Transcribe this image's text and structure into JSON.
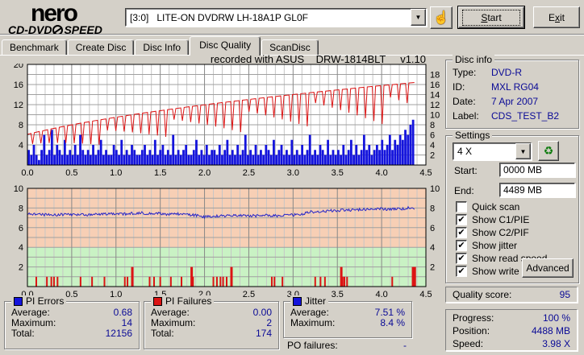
{
  "header": {
    "logo": {
      "line1": "nero",
      "line2a": "CD-DVD",
      "line2b": "SPEED"
    },
    "drive_select": {
      "value": "[3:0]   LITE-ON DVDRW LH-18A1P GL0F"
    },
    "start_button": {
      "u": "S",
      "rest": "tart"
    },
    "exit_button": {
      "pre": "E",
      "u": "x",
      "rest": "it"
    }
  },
  "tabs": [
    {
      "label": "Benchmark",
      "active": false
    },
    {
      "label": "Create Disc",
      "active": false
    },
    {
      "label": "Disc Info",
      "active": false
    },
    {
      "label": "Disc Quality",
      "active": true
    },
    {
      "label": "ScanDisc",
      "active": false
    }
  ],
  "chart_header": "recorded with ASUS    DRW-1814BLT     v1.10",
  "disc_info": {
    "title": "Disc info",
    "rows": [
      {
        "label": "Type:",
        "value": "DVD-R"
      },
      {
        "label": "ID:",
        "value": "MXL RG04"
      },
      {
        "label": "Date:",
        "value": "7 Apr 2007"
      },
      {
        "label": "Label:",
        "value": "CDS_TEST_B2"
      }
    ]
  },
  "settings": {
    "title": "Settings",
    "speed_select": "4 X",
    "start_label": "Start:",
    "start_value": "0000 MB",
    "end_label": "End:",
    "end_value": "4489 MB",
    "checkboxes": [
      {
        "label": "Quick scan",
        "checked": false
      },
      {
        "label": "Show C1/PIE",
        "checked": true
      },
      {
        "label": "Show C2/PIF",
        "checked": true
      },
      {
        "label": "Show jitter",
        "checked": true
      },
      {
        "label": "Show read speed",
        "checked": true
      },
      {
        "label": "Show write speed",
        "checked": true
      }
    ],
    "advanced_button": "Advanced"
  },
  "quality": {
    "label": "Quality score:",
    "value": "95"
  },
  "progress": {
    "rows": [
      {
        "label": "Progress:",
        "value": "100 %"
      },
      {
        "label": "Position:",
        "value": "4488 MB"
      },
      {
        "label": "Speed:",
        "value": "3.98 X"
      }
    ]
  },
  "stats": {
    "pi_errors": {
      "title": "PI Errors",
      "color": "#1414dc",
      "rows": [
        {
          "label": "Average:",
          "value": "0.68"
        },
        {
          "label": "Maximum:",
          "value": "14"
        },
        {
          "label": "Total:",
          "value": "12156"
        }
      ]
    },
    "pi_failures": {
      "title": "PI Failures",
      "color": "#dc1414",
      "rows": [
        {
          "label": "Average:",
          "value": "0.00"
        },
        {
          "label": "Maximum:",
          "value": "2"
        },
        {
          "label": "Total:",
          "value": "174"
        }
      ]
    },
    "jitter": {
      "title": "Jitter",
      "color": "#1414dc",
      "rows": [
        {
          "label": "Average:",
          "value": "7.51 %"
        },
        {
          "label": "Maximum:",
          "value": "8.4 %"
        }
      ]
    }
  },
  "po_failures": {
    "label": "PO failures:",
    "value": "-"
  },
  "chart_data": [
    {
      "name": "pi-errors-write-speed",
      "type": "bar",
      "x_range": [
        0,
        4.5
      ],
      "x_tick_step": 0.5,
      "x_minor_step": 0.1,
      "data_end_x": 4.37,
      "left_axis": {
        "range": [
          0,
          20
        ],
        "tick_labels": [
          4,
          8,
          12,
          16,
          20
        ]
      },
      "right_axis": {
        "range": [
          0,
          20
        ],
        "tick_labels": [
          2,
          4,
          6,
          8,
          10,
          12,
          14,
          16,
          18
        ]
      },
      "series": [
        {
          "name": "PI Errors",
          "type": "bar",
          "color": "#1414dc",
          "values": [
            3,
            2,
            4,
            2,
            1,
            3,
            6,
            2,
            3,
            7,
            2,
            4,
            3,
            2,
            5,
            2,
            3,
            2,
            4,
            2,
            6,
            3,
            2,
            3,
            2,
            4,
            2,
            3,
            5,
            2,
            3,
            2,
            2,
            4,
            3,
            2,
            5,
            2,
            3,
            2,
            4,
            3,
            2,
            2,
            3,
            4,
            2,
            3,
            2,
            5,
            2,
            3,
            4,
            2,
            3,
            2,
            6,
            2,
            3,
            2,
            3,
            4,
            2,
            2,
            3,
            5,
            2,
            3,
            2,
            4,
            2,
            3,
            3,
            2,
            4,
            2,
            3,
            5,
            2,
            3,
            2,
            4,
            2,
            3,
            6,
            2,
            3,
            2,
            4,
            2,
            3,
            2,
            4,
            3,
            2,
            5,
            2,
            3,
            4,
            2,
            3,
            2,
            5,
            2,
            3,
            2,
            4,
            2,
            3,
            6,
            2,
            3,
            2,
            4,
            3,
            2,
            5,
            2,
            3,
            2,
            3,
            2,
            4,
            2,
            3,
            5,
            2,
            4,
            2,
            3,
            6,
            3,
            4,
            2,
            3,
            4,
            3,
            5,
            3,
            4,
            6,
            3,
            5,
            4,
            6,
            5,
            7,
            6,
            8,
            9
          ]
        },
        {
          "name": "Read speed",
          "type": "hline",
          "color": "#bebebe",
          "value": 4
        },
        {
          "name": "Write speed",
          "type": "cav-line",
          "color": "#dc1414",
          "start": 6.1,
          "end": 16.4,
          "dips": {
            "first": 0.07,
            "interval": 0.094,
            "base_depth": 2.2,
            "var_depth": 2.2,
            "x_gain": 0.9
          }
        }
      ]
    },
    {
      "name": "jitter-pi-failures",
      "type": "line",
      "x_range": [
        0,
        4.5
      ],
      "x_tick_step": 0.5,
      "x_minor_step": 0.1,
      "data_end_x": 4.37,
      "y_axis": {
        "range": [
          0,
          10
        ],
        "tick_labels": [
          2,
          4,
          6,
          8,
          10
        ]
      },
      "bands": [
        {
          "from": 4,
          "to": 10,
          "color": "#f7cfb5"
        },
        {
          "from": 0,
          "to": 4,
          "color": "#c9f2c4"
        }
      ],
      "series": [
        {
          "name": "PI Failures",
          "type": "bar-points",
          "color": "#dc1414",
          "points": [
            [
              0.1,
              1
            ],
            [
              0.22,
              1
            ],
            [
              0.27,
              1
            ],
            [
              0.3,
              1
            ],
            [
              0.34,
              1
            ],
            [
              0.6,
              1
            ],
            [
              0.73,
              1
            ],
            [
              0.87,
              1
            ],
            [
              1.1,
              1
            ],
            [
              1.13,
              1
            ],
            [
              1.18,
              2
            ],
            [
              1.38,
              1
            ],
            [
              1.43,
              1
            ],
            [
              1.5,
              1
            ],
            [
              1.62,
              1
            ],
            [
              1.74,
              1
            ],
            [
              1.85,
              2
            ],
            [
              1.87,
              1
            ],
            [
              2.1,
              1
            ],
            [
              2.14,
              1
            ],
            [
              2.18,
              1
            ],
            [
              2.21,
              1
            ],
            [
              2.25,
              1
            ],
            [
              2.3,
              2
            ],
            [
              2.76,
              1
            ],
            [
              2.79,
              1
            ],
            [
              2.88,
              1
            ],
            [
              3.25,
              1
            ],
            [
              3.31,
              1
            ],
            [
              3.36,
              1
            ],
            [
              3.54,
              2
            ],
            [
              3.56,
              1
            ],
            [
              3.58,
              1
            ],
            [
              3.61,
              1
            ],
            [
              4.12,
              1
            ],
            [
              4.35,
              2
            ],
            [
              4.37,
              2
            ]
          ]
        },
        {
          "name": "Jitter",
          "type": "noisy-line",
          "color": "#2424c8",
          "anchor_step": 0.1,
          "noise": 0.14,
          "anchors": [
            7.5,
            7.35,
            7.3,
            7.3,
            7.35,
            7.3,
            7.35,
            7.3,
            7.35,
            7.4,
            7.45,
            7.4,
            7.45,
            7.5,
            7.4,
            7.45,
            7.35,
            7.4,
            7.3,
            7.25,
            7.1,
            7.15,
            7.2,
            7.25,
            7.2,
            7.25,
            7.2,
            7.25,
            7.2,
            7.3,
            7.3,
            7.4,
            7.6,
            7.65,
            7.7,
            7.75,
            7.8,
            7.8,
            7.85,
            7.9,
            7.9,
            7.85,
            7.9,
            8.0,
            7.95
          ]
        }
      ]
    }
  ]
}
